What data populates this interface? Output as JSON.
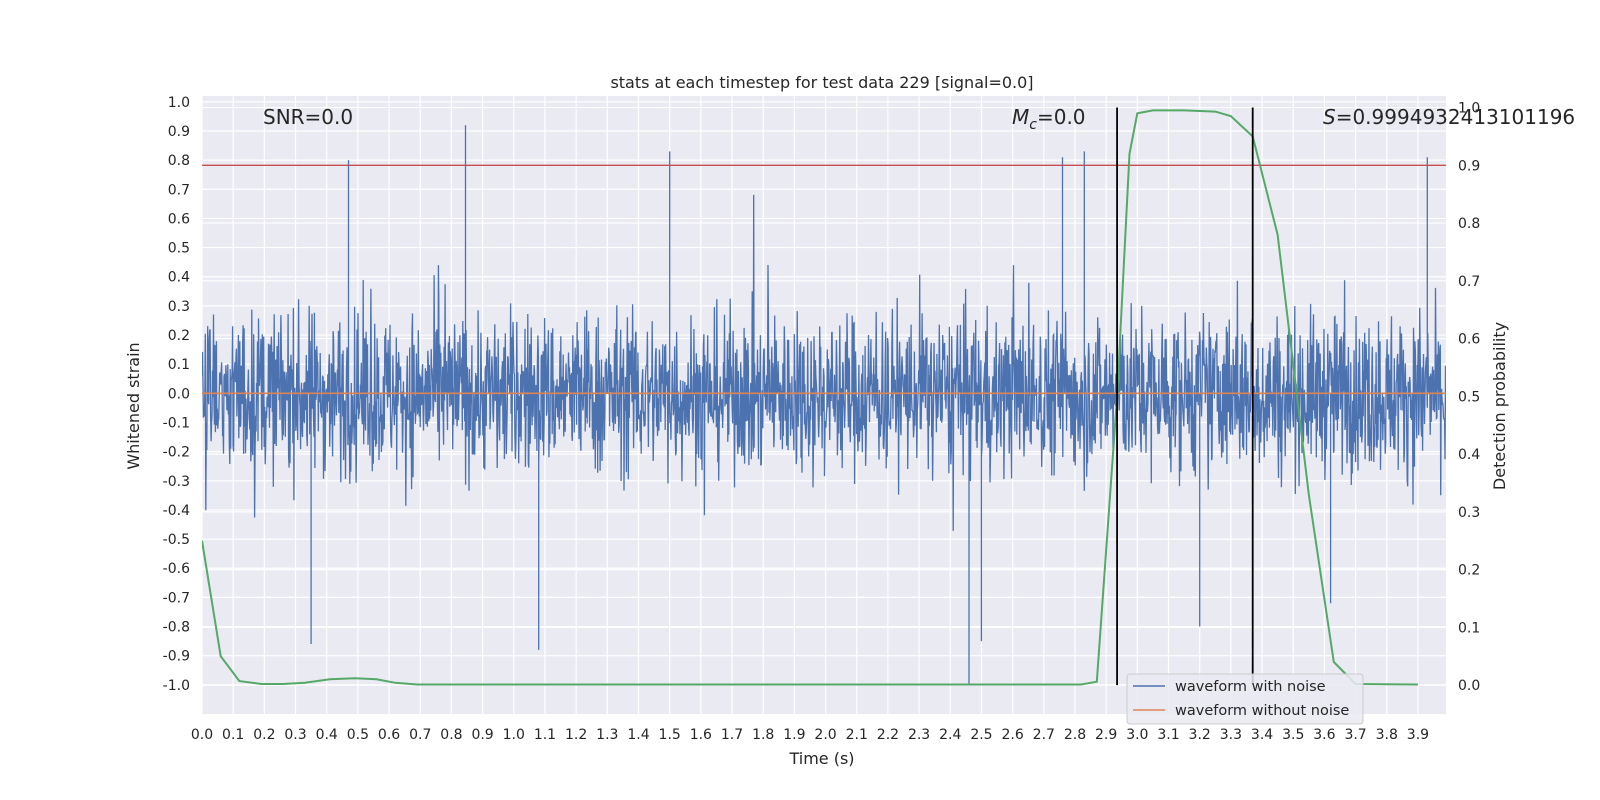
{
  "chart_data": {
    "type": "line",
    "title": "stats at each timestep for test data 229 [signal=0.0]",
    "xlabel": "Time (s)",
    "ylabel": "Whitened strain",
    "y2label": "Detection probability",
    "xlim": [
      0.0,
      3.99
    ],
    "ylim": [
      -1.1,
      1.02
    ],
    "y2lim": [
      -0.05,
      1.02
    ],
    "xticks": [
      "0.0",
      "0.1",
      "0.2",
      "0.3",
      "0.4",
      "0.5",
      "0.6",
      "0.7",
      "0.8",
      "0.9",
      "1.0",
      "1.1",
      "1.2",
      "1.3",
      "1.4",
      "1.5",
      "1.6",
      "1.7",
      "1.8",
      "1.9",
      "2.0",
      "2.1",
      "2.2",
      "2.3",
      "2.4",
      "2.5",
      "2.6",
      "2.7",
      "2.8",
      "2.9",
      "3.0",
      "3.1",
      "3.2",
      "3.3",
      "3.4",
      "3.5",
      "3.6",
      "3.7",
      "3.8",
      "3.9"
    ],
    "yticks": [
      "1.0",
      "0.9",
      "0.8",
      "0.7",
      "0.6",
      "0.5",
      "0.4",
      "0.3",
      "0.2",
      "0.1",
      "0.0",
      "-0.1",
      "-0.2",
      "-0.3",
      "-0.4",
      "-0.5",
      "-0.6",
      "-0.7",
      "-0.8",
      "-0.9",
      "-1.0"
    ],
    "y2ticks": [
      "1.0",
      "0.9",
      "0.8",
      "0.7",
      "0.6",
      "0.5",
      "0.4",
      "0.3",
      "0.2",
      "0.1",
      "0.0"
    ],
    "grid": true,
    "legend_position": "bottom-right",
    "annotations": {
      "snr": "SNR=0.0",
      "mc_symbol": "M",
      "mc_sub": "c",
      "mc_value": "=0.0",
      "s_symbol": "S",
      "s_value": "=0.9994932413101196"
    },
    "threshold_line": {
      "y2": 0.9,
      "color": "#c44e52"
    },
    "vertical_markers": [
      2.935,
      3.37
    ],
    "series": [
      {
        "name": "waveform with noise",
        "color": "#4c72b0",
        "noise_amplitude_range": [
          -1.0,
          0.92
        ],
        "peaks": [
          {
            "x": 0.47,
            "y": 0.8
          },
          {
            "x": 0.845,
            "y": 0.92
          },
          {
            "x": 1.5,
            "y": 0.83
          },
          {
            "x": 2.76,
            "y": 0.81
          },
          {
            "x": 2.83,
            "y": 0.83
          },
          {
            "x": 3.93,
            "y": 0.81
          },
          {
            "x": 0.35,
            "y": -0.86
          },
          {
            "x": 1.08,
            "y": -0.88
          },
          {
            "x": 2.46,
            "y": -1.0
          },
          {
            "x": 2.5,
            "y": -0.85
          },
          {
            "x": 3.2,
            "y": -0.8
          },
          {
            "x": 3.62,
            "y": -0.72
          }
        ]
      },
      {
        "name": "waveform without noise",
        "color": "#dd8452",
        "x": [
          0.0,
          3.99
        ],
        "y": [
          0.0,
          0.0
        ]
      },
      {
        "name": "",
        "axis": "right",
        "color": "#55a868",
        "x": [
          0.0,
          0.06,
          0.12,
          0.19,
          0.26,
          0.33,
          0.41,
          0.49,
          0.56,
          0.62,
          0.69,
          1.0,
          2.0,
          2.75,
          2.82,
          2.87,
          2.935,
          2.975,
          3.0,
          3.05,
          3.15,
          3.25,
          3.3,
          3.37,
          3.45,
          3.55,
          3.63,
          3.7,
          3.9
        ],
        "y": [
          0.25,
          0.05,
          0.007,
          0.002,
          0.002,
          0.004,
          0.01,
          0.012,
          0.01,
          0.004,
          0.001,
          0.001,
          0.001,
          0.001,
          0.001,
          0.006,
          0.5,
          0.92,
          0.99,
          0.995,
          0.995,
          0.993,
          0.985,
          0.95,
          0.78,
          0.33,
          0.04,
          0.002,
          0.001
        ]
      }
    ]
  }
}
